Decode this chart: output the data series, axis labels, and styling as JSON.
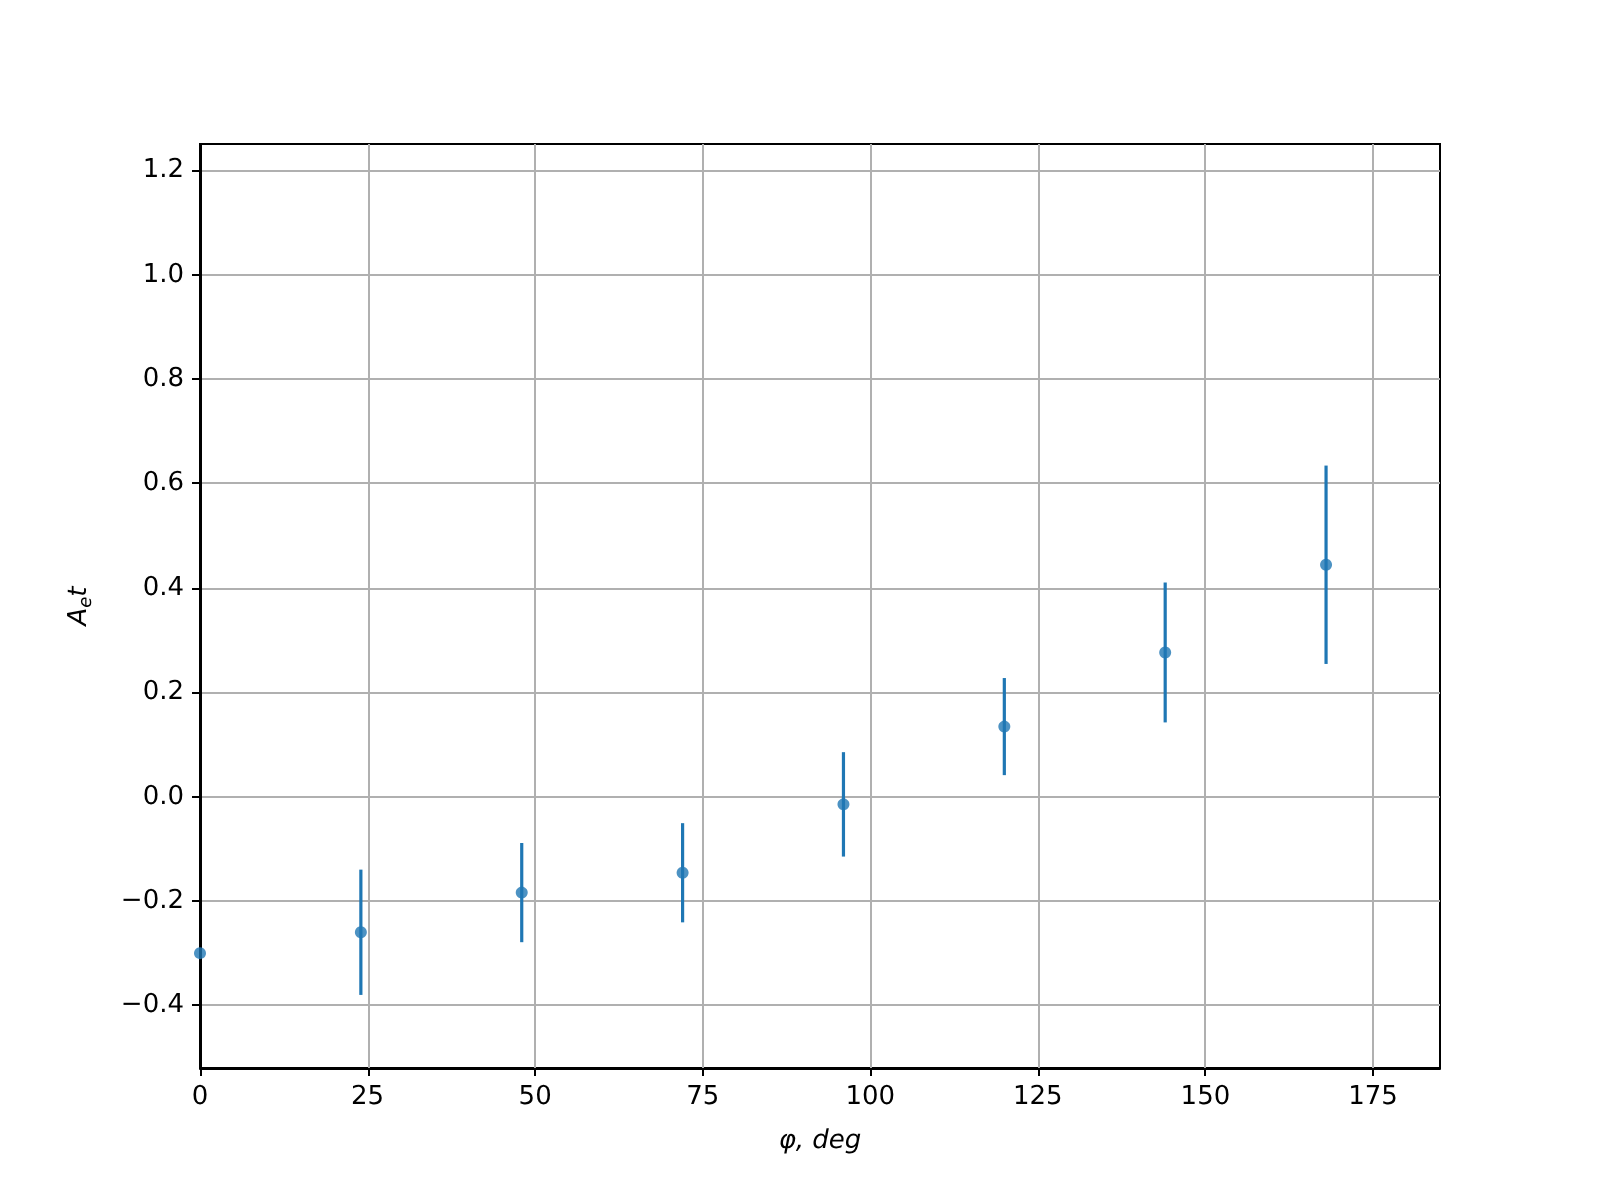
{
  "chart_data": {
    "type": "scatter",
    "xlabel": "φ, deg",
    "ylabel": "A$_{e}$t",
    "x": [
      0,
      24,
      48,
      72,
      96,
      120,
      144,
      168
    ],
    "series": [
      {
        "color": "#1f77b4",
        "values": [
          -0.3,
          -0.26,
          -0.184,
          -0.146,
          -0.015,
          0.134,
          0.276,
          0.444
        ],
        "errors": [
          null,
          0.12,
          0.095,
          0.095,
          0.1,
          0.093,
          0.134,
          0.19
        ]
      }
    ],
    "xlim": [
      0,
      185
    ],
    "xticks": [
      0,
      25,
      50,
      75,
      100,
      125,
      150,
      175
    ],
    "ylim": [
      -0.52,
      1.25
    ],
    "yticks": [
      {
        "value": -0.4,
        "label": "−0.4"
      },
      {
        "value": -0.2,
        "label": "−0.2"
      },
      {
        "value": 0,
        "label": "0.0"
      },
      {
        "value": 0.2,
        "label": "0.2"
      },
      {
        "value": 0.4,
        "label": "0.4"
      },
      {
        "value": 0.6,
        "label": "0.6"
      },
      {
        "value": 0.8,
        "label": "0.8"
      },
      {
        "value": 1,
        "label": "1.0"
      },
      {
        "value": 1.2,
        "label": "1.2"
      }
    ],
    "grid": true,
    "marker": "circle"
  }
}
